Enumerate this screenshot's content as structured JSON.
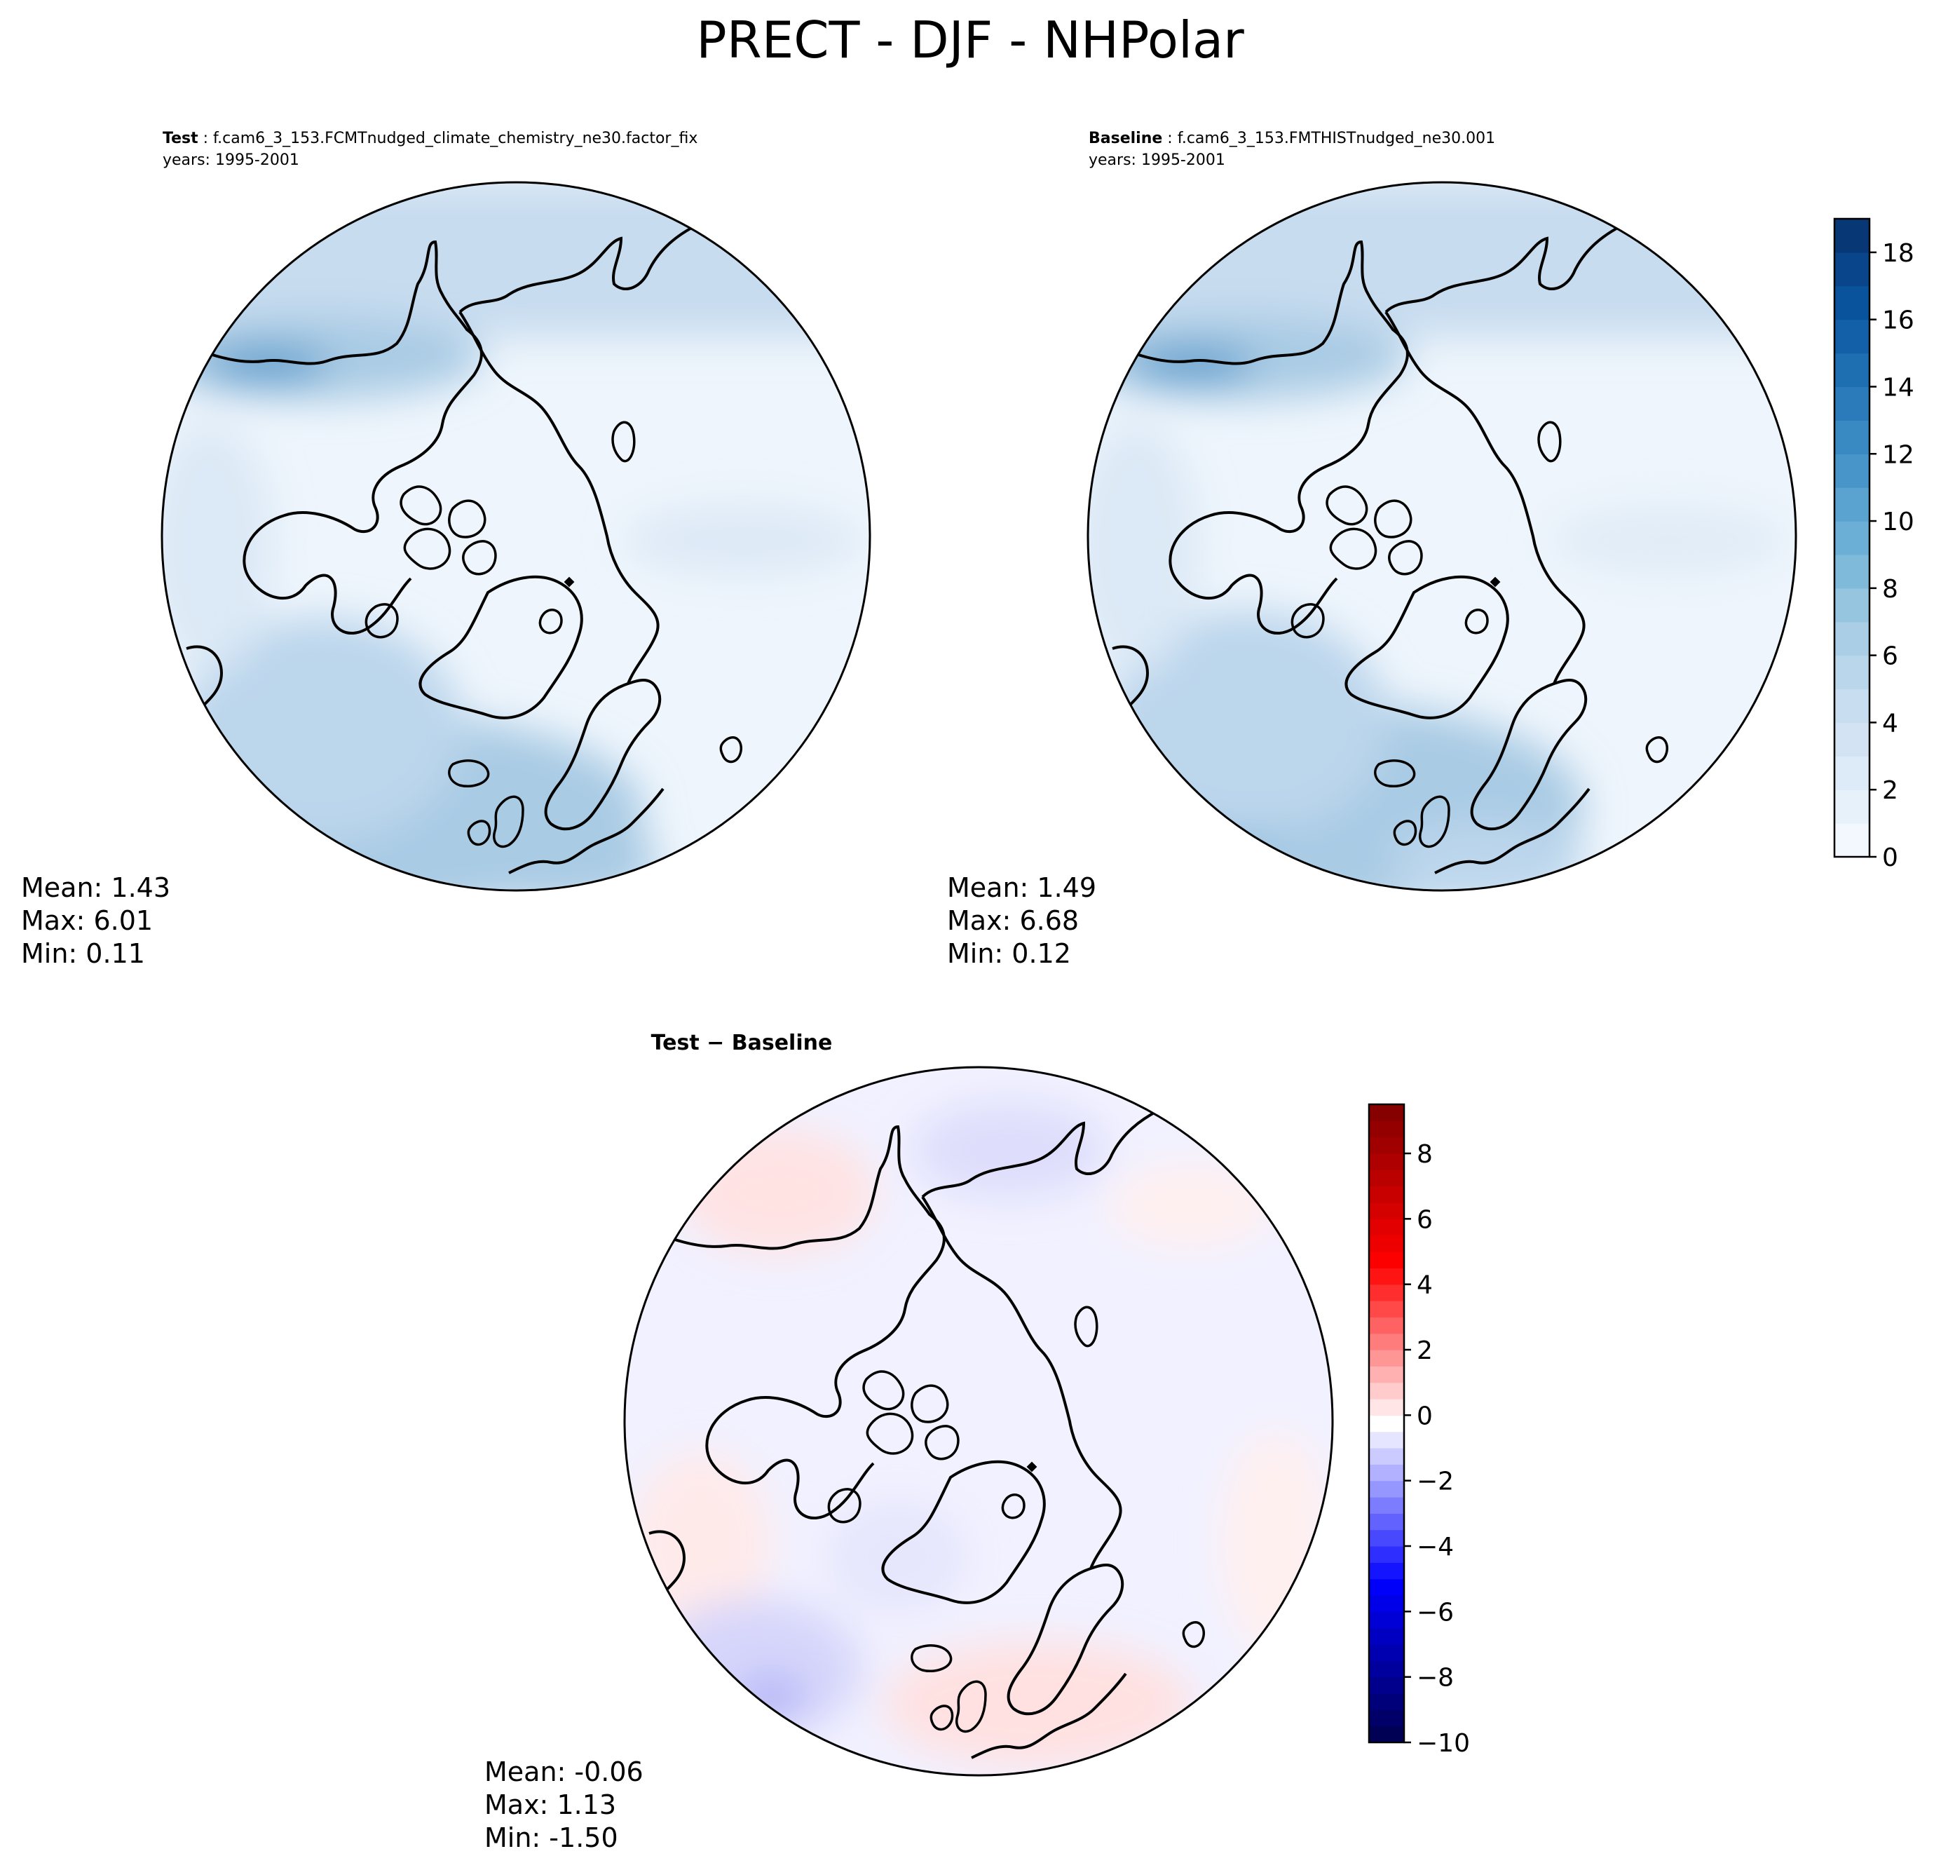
{
  "figure": {
    "title": "PRECT - DJF - NHPolar"
  },
  "chart_data": [
    {
      "type": "heatmap",
      "projection": "north-polar-stereographic",
      "panel": "test",
      "label_bold": "Test",
      "label_rest": " : f.cam6_3_153.FCMTnudged_climate_chemistry_ne30.factor_fix",
      "years": "years: 1995-2001",
      "stats": [
        "Mean:  1.43",
        "Max:  6.01",
        "Min:  0.11"
      ],
      "mean": 1.43,
      "max": 6.01,
      "min": 0.11,
      "colormap": "Blues"
    },
    {
      "type": "heatmap",
      "projection": "north-polar-stereographic",
      "panel": "baseline",
      "label_bold": "Baseline",
      "label_rest": " : f.cam6_3_153.FMTHISTnudged_ne30.001",
      "years": "years: 1995-2001",
      "stats": [
        "Mean:  1.49",
        "Max:  6.68",
        "Min:  0.12"
      ],
      "mean": 1.49,
      "max": 6.68,
      "min": 0.12,
      "colormap": "Blues",
      "colorbar": {
        "range": [
          0,
          19
        ],
        "ticks": [
          0,
          2,
          4,
          6,
          8,
          10,
          12,
          14,
          16,
          18
        ],
        "tick_labels": [
          "0",
          "2",
          "4",
          "6",
          "8",
          "10",
          "12",
          "14",
          "16",
          "18"
        ],
        "levels": 19,
        "color_low": "#f7fbff",
        "color_high": "#08306b"
      }
    },
    {
      "type": "heatmap",
      "projection": "north-polar-stereographic",
      "panel": "difference",
      "label": "Test − Baseline",
      "stats": [
        "Mean: -0.06",
        "Max:  1.13",
        "Min: -1.50"
      ],
      "mean": -0.06,
      "max": 1.13,
      "min": -1.5,
      "colormap": "seismic",
      "colorbar": {
        "range": [
          -10,
          9.5
        ],
        "ticks": [
          -10,
          -8,
          -6,
          -4,
          -2,
          0,
          2,
          4,
          6,
          8
        ],
        "tick_labels": [
          "−10",
          "−8",
          "−6",
          "−4",
          "−2",
          "0",
          "2",
          "4",
          "6",
          "8"
        ],
        "levels": 39,
        "color_low": "#00004c",
        "color_mid": "#ffffff",
        "color_high": "#800000"
      }
    }
  ]
}
